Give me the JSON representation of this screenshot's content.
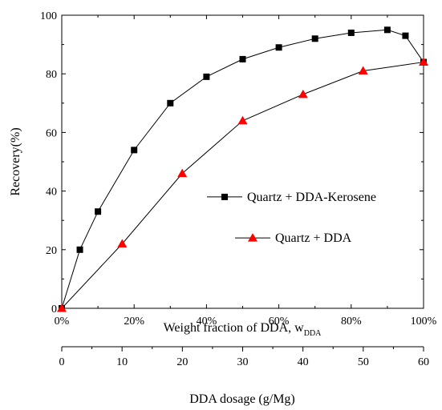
{
  "chart_data": {
    "type": "line",
    "title": "",
    "xlabel": "Weight fraction of DDA, w",
    "xlabel_subscript": "DDA",
    "ylabel": "Recovery(%)",
    "xlim": [
      0,
      100
    ],
    "ylim": [
      0,
      100
    ],
    "x_ticks": [
      0,
      20,
      40,
      60,
      80,
      100
    ],
    "x_tick_labels": [
      "0%",
      "20%",
      "40%",
      "60%",
      "80%",
      "100%"
    ],
    "y_ticks": [
      0,
      20,
      40,
      60,
      80,
      100
    ],
    "y_tick_labels": [
      "0",
      "20",
      "40",
      "60",
      "80",
      "100"
    ],
    "secondary_x_axis": {
      "label": "DDA dosage (g/Mg)",
      "lim": [
        0,
        60
      ],
      "ticks": [
        0,
        10,
        20,
        30,
        40,
        50,
        60
      ],
      "tick_labels": [
        "0",
        "10",
        "20",
        "30",
        "40",
        "50",
        "60"
      ]
    },
    "grid": false,
    "legend_position": "center-right",
    "series": [
      {
        "name": "Quartz + DDA-Kerosene",
        "marker": "square",
        "color": "#000000",
        "x": [
          0,
          5,
          10,
          20,
          30,
          40,
          50,
          60,
          70,
          80,
          90,
          95,
          100
        ],
        "y": [
          0,
          20,
          33,
          54,
          70,
          79,
          85,
          89,
          92,
          94,
          95,
          93,
          84
        ]
      },
      {
        "name": "Quartz + DDA",
        "marker": "triangle",
        "color": "#ff0000",
        "x": [
          0,
          16.7,
          33.3,
          50,
          66.7,
          83.3,
          100
        ],
        "y": [
          0,
          22,
          46,
          64,
          73,
          81,
          84
        ]
      }
    ]
  }
}
